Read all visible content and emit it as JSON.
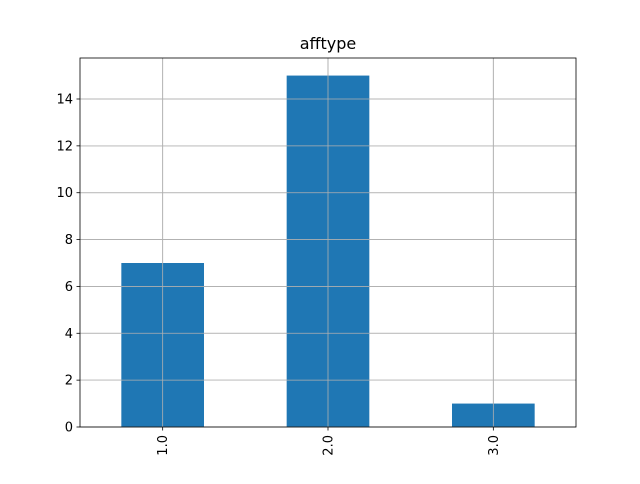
{
  "chart_data": {
    "type": "bar",
    "title": "afftype",
    "xlabel": "",
    "ylabel": "",
    "categories": [
      "1.0",
      "2.0",
      "3.0"
    ],
    "values": [
      7,
      15,
      1
    ],
    "ylim": [
      0,
      15.75
    ],
    "yticks": [
      0,
      2,
      4,
      6,
      8,
      10,
      12,
      14
    ],
    "grid": true,
    "bar_color": "#1f77b4",
    "grid_color": "#b0b0b0",
    "x_tick_rotation": "vertical"
  }
}
